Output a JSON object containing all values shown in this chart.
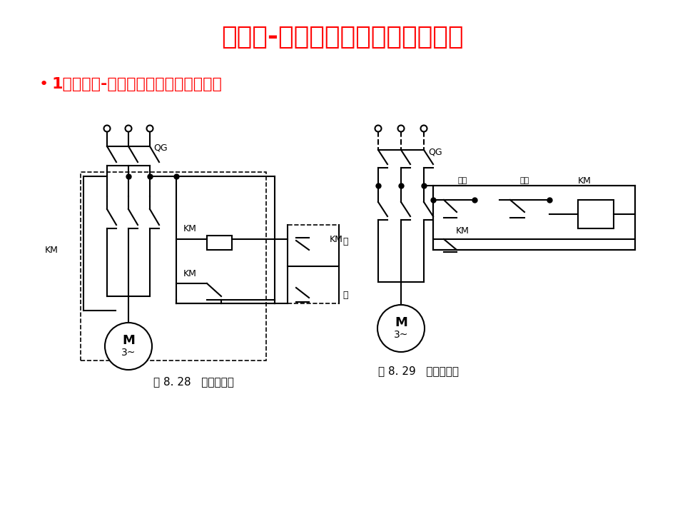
{
  "title": "继电器-接触器控制的常用基本线路",
  "subtitle": "1、继电器-接触器自动控制线路的构成",
  "title_color": "#FF0000",
  "subtitle_color": "#FF0000",
  "fig8_28_label": "图 8. 28   安装线路图",
  "fig8_29_label": "图 8. 29   原理线路图",
  "bg_color": "#FFFFFF",
  "lc": "#000000"
}
